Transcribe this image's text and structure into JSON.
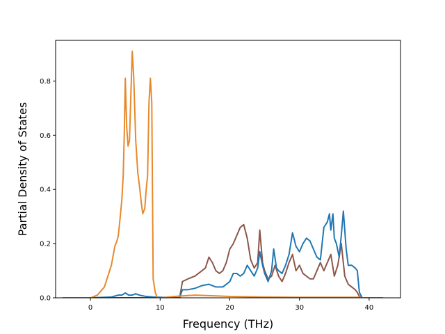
{
  "chart_data": {
    "type": "line",
    "xlabel": "Frequency (THz)",
    "ylabel": "Partial Density of States",
    "xlim": [
      -5,
      44.5
    ],
    "ylim": [
      0,
      0.95
    ],
    "xticks": [
      0,
      10,
      20,
      30,
      40
    ],
    "yticks": [
      0.0,
      0.2,
      0.4,
      0.6,
      0.8
    ],
    "grid": false,
    "series": [
      {
        "color": "#8c564b",
        "x": [
          -4,
          0,
          12.8,
          13.2,
          14,
          15,
          16,
          16.5,
          17,
          17.5,
          18,
          18.5,
          19,
          19.5,
          20,
          20.5,
          21,
          21.5,
          22,
          22.5,
          23,
          23.5,
          24,
          24.3,
          24.7,
          25,
          25.5,
          26,
          26.5,
          27,
          27.5,
          28,
          28.5,
          29,
          29.5,
          30,
          30.5,
          31,
          31.5,
          32,
          32.5,
          33,
          33.5,
          34,
          34.5,
          35,
          35.5,
          36,
          36.5,
          37,
          37.5,
          38,
          38.3,
          38.6,
          39,
          42
        ],
        "y": [
          0,
          0,
          0,
          0.06,
          0.07,
          0.08,
          0.1,
          0.11,
          0.15,
          0.13,
          0.1,
          0.09,
          0.1,
          0.13,
          0.18,
          0.2,
          0.23,
          0.26,
          0.27,
          0.22,
          0.14,
          0.11,
          0.13,
          0.25,
          0.13,
          0.1,
          0.07,
          0.08,
          0.12,
          0.08,
          0.06,
          0.09,
          0.13,
          0.16,
          0.1,
          0.12,
          0.09,
          0.08,
          0.07,
          0.07,
          0.1,
          0.13,
          0.1,
          0.13,
          0.16,
          0.08,
          0.12,
          0.2,
          0.08,
          0.05,
          0.04,
          0.03,
          0.02,
          0.005,
          0,
          0
        ]
      },
      {
        "color": "#1f77b4",
        "x": [
          -4,
          0,
          3,
          4,
          4.5,
          5,
          5.5,
          6,
          6.5,
          7,
          8,
          9,
          12.8,
          13.2,
          14,
          15,
          16,
          17,
          18,
          19,
          19.5,
          20,
          20.5,
          21,
          21.5,
          22,
          22.5,
          23,
          23.5,
          24,
          24.3,
          24.7,
          25,
          25.5,
          26,
          26.3,
          26.7,
          27,
          27.5,
          28,
          28.5,
          29,
          29.5,
          30,
          30.5,
          31,
          31.5,
          32,
          32.5,
          33,
          33.5,
          34,
          34.3,
          34.5,
          34.8,
          35,
          35.3,
          35.7,
          36,
          36.3,
          36.7,
          37,
          37.5,
          38,
          38.3,
          38.6,
          39,
          42
        ],
        "y": [
          0,
          0,
          0.003,
          0.01,
          0.01,
          0.018,
          0.01,
          0.01,
          0.015,
          0.01,
          0.005,
          0.003,
          0,
          0.03,
          0.03,
          0.035,
          0.045,
          0.05,
          0.04,
          0.04,
          0.05,
          0.06,
          0.09,
          0.09,
          0.08,
          0.09,
          0.12,
          0.1,
          0.08,
          0.11,
          0.17,
          0.12,
          0.09,
          0.06,
          0.1,
          0.18,
          0.11,
          0.1,
          0.09,
          0.12,
          0.16,
          0.24,
          0.19,
          0.17,
          0.2,
          0.22,
          0.21,
          0.18,
          0.15,
          0.14,
          0.26,
          0.28,
          0.31,
          0.25,
          0.31,
          0.22,
          0.2,
          0.15,
          0.23,
          0.32,
          0.18,
          0.12,
          0.12,
          0.11,
          0.1,
          0.02,
          0,
          0
        ]
      },
      {
        "color": "#e6892c",
        "x": [
          -4,
          0,
          1,
          2,
          3,
          3.5,
          3.8,
          4,
          4.2,
          4.5,
          4.7,
          4.85,
          5,
          5.2,
          5.4,
          5.6,
          5.8,
          6,
          6.2,
          6.5,
          6.8,
          7,
          7.3,
          7.5,
          7.8,
          8,
          8.2,
          8.4,
          8.6,
          8.8,
          9,
          9.3,
          9.6,
          10,
          12,
          15,
          20,
          25,
          30,
          35,
          38.6,
          39,
          42
        ],
        "y": [
          0,
          0,
          0.01,
          0.04,
          0.12,
          0.19,
          0.21,
          0.23,
          0.28,
          0.36,
          0.45,
          0.6,
          0.81,
          0.63,
          0.56,
          0.58,
          0.75,
          0.91,
          0.82,
          0.58,
          0.46,
          0.42,
          0.35,
          0.31,
          0.33,
          0.4,
          0.45,
          0.72,
          0.81,
          0.72,
          0.07,
          0.02,
          0,
          0,
          0.005,
          0.01,
          0.005,
          0.003,
          0.002,
          0.002,
          0.002,
          0,
          0
        ]
      }
    ]
  }
}
